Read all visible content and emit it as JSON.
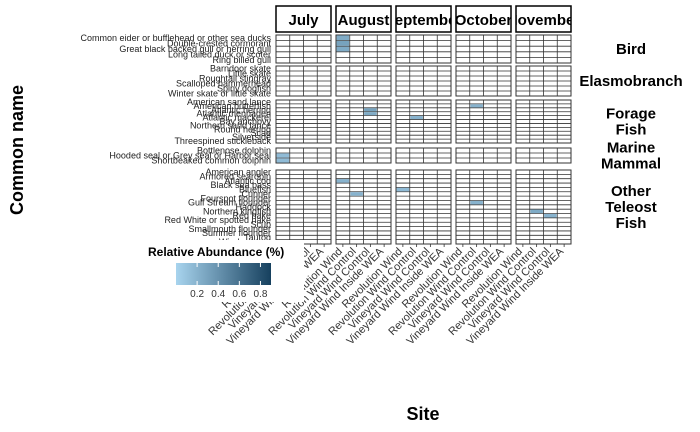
{
  "chart_data": {
    "type": "heatmap",
    "xlabel": "Site",
    "ylabel": "Common name",
    "months": [
      "July",
      "August",
      "September",
      "October",
      "November"
    ],
    "sites": [
      "Revolution Wind",
      "Revolution Wind Control",
      "Vineyard Wind Control",
      "Vineyard Wind Inside WEA"
    ],
    "groups": [
      {
        "name": "Bird",
        "species": [
          "Common eider or bufflehead or other sea ducks",
          "Double-crested cormorant",
          "Great black backed gull or herring gull",
          "Long tailed duck or scoter",
          "Ring billed gull"
        ]
      },
      {
        "name": "Elasmobranch",
        "species": [
          "Barndoor skate",
          "Little skate",
          "Roughtail stingray",
          "Scalloped hammerhead",
          "Spiny dogfish",
          "Winter skate or little skate"
        ]
      },
      {
        "name": "Forage Fish",
        "species": [
          "American sand lance",
          "American butterfish",
          "Atlantic herring",
          "Atlantic menhaden",
          "Atlantic mackerel",
          "Bay anchovy",
          "Northern sand lance",
          "Round herring",
          "Scad",
          "Silverside",
          "Threespined stickleback"
        ]
      },
      {
        "name": "Marine Mammal",
        "species": [
          "Bottlenose dolphin",
          "Hooded seal or Grey seal or Harbor seal",
          "Shortbeaked common dolphin"
        ]
      },
      {
        "name": "Other Teleost Fish",
        "species": [
          "American angler",
          "Armored searobin",
          "Atlantic cod",
          "Black sea bass",
          "Bluefish",
          "Cunner",
          "Fourspot flounder",
          "Gulf Stream flounder",
          "Haddock",
          "Northern kingfish",
          "Red hake",
          "Red White or spotted hake",
          "Scup",
          "Smallmouth flounder",
          "Summer flounder",
          "Tautog",
          "Windowpane"
        ]
      }
    ],
    "legend": {
      "title": "Relative Abundance (%)",
      "ticks": [
        0.2,
        0.4,
        0.6,
        0.8
      ],
      "min": 0,
      "max": 0.9,
      "low_color": "#a8d4ee",
      "high_color": "#16405e"
    },
    "cell_color": "#ffffff",
    "highlighted_cells": [
      {
        "group": 0,
        "month": 1,
        "site": 0,
        "species": 0,
        "value": 0.25
      },
      {
        "group": 0,
        "month": 1,
        "site": 0,
        "species": 1,
        "value": 0.3
      },
      {
        "group": 0,
        "month": 1,
        "site": 0,
        "species": 2,
        "value": 0.25
      },
      {
        "group": 2,
        "month": 1,
        "site": 2,
        "species": 2,
        "value": 0.3
      },
      {
        "group": 2,
        "month": 1,
        "site": 2,
        "species": 3,
        "value": 0.25
      },
      {
        "group": 2,
        "month": 2,
        "site": 1,
        "species": 4,
        "value": 0.2
      },
      {
        "group": 2,
        "month": 3,
        "site": 1,
        "species": 1,
        "value": 0.2
      },
      {
        "group": 3,
        "month": 0,
        "site": 0,
        "species": 1,
        "value": 0.15
      },
      {
        "group": 3,
        "month": 0,
        "site": 0,
        "species": 2,
        "value": 0.15
      },
      {
        "group": 4,
        "month": 1,
        "site": 0,
        "species": 2,
        "value": 0.2
      },
      {
        "group": 4,
        "month": 1,
        "site": 1,
        "species": 5,
        "value": 0.2
      },
      {
        "group": 4,
        "month": 2,
        "site": 0,
        "species": 4,
        "value": 0.15
      },
      {
        "group": 4,
        "month": 3,
        "site": 1,
        "species": 7,
        "value": 0.2
      },
      {
        "group": 4,
        "month": 4,
        "site": 1,
        "species": 9,
        "value": 0.25
      },
      {
        "group": 4,
        "month": 4,
        "site": 2,
        "species": 10,
        "value": 0.2
      }
    ]
  }
}
